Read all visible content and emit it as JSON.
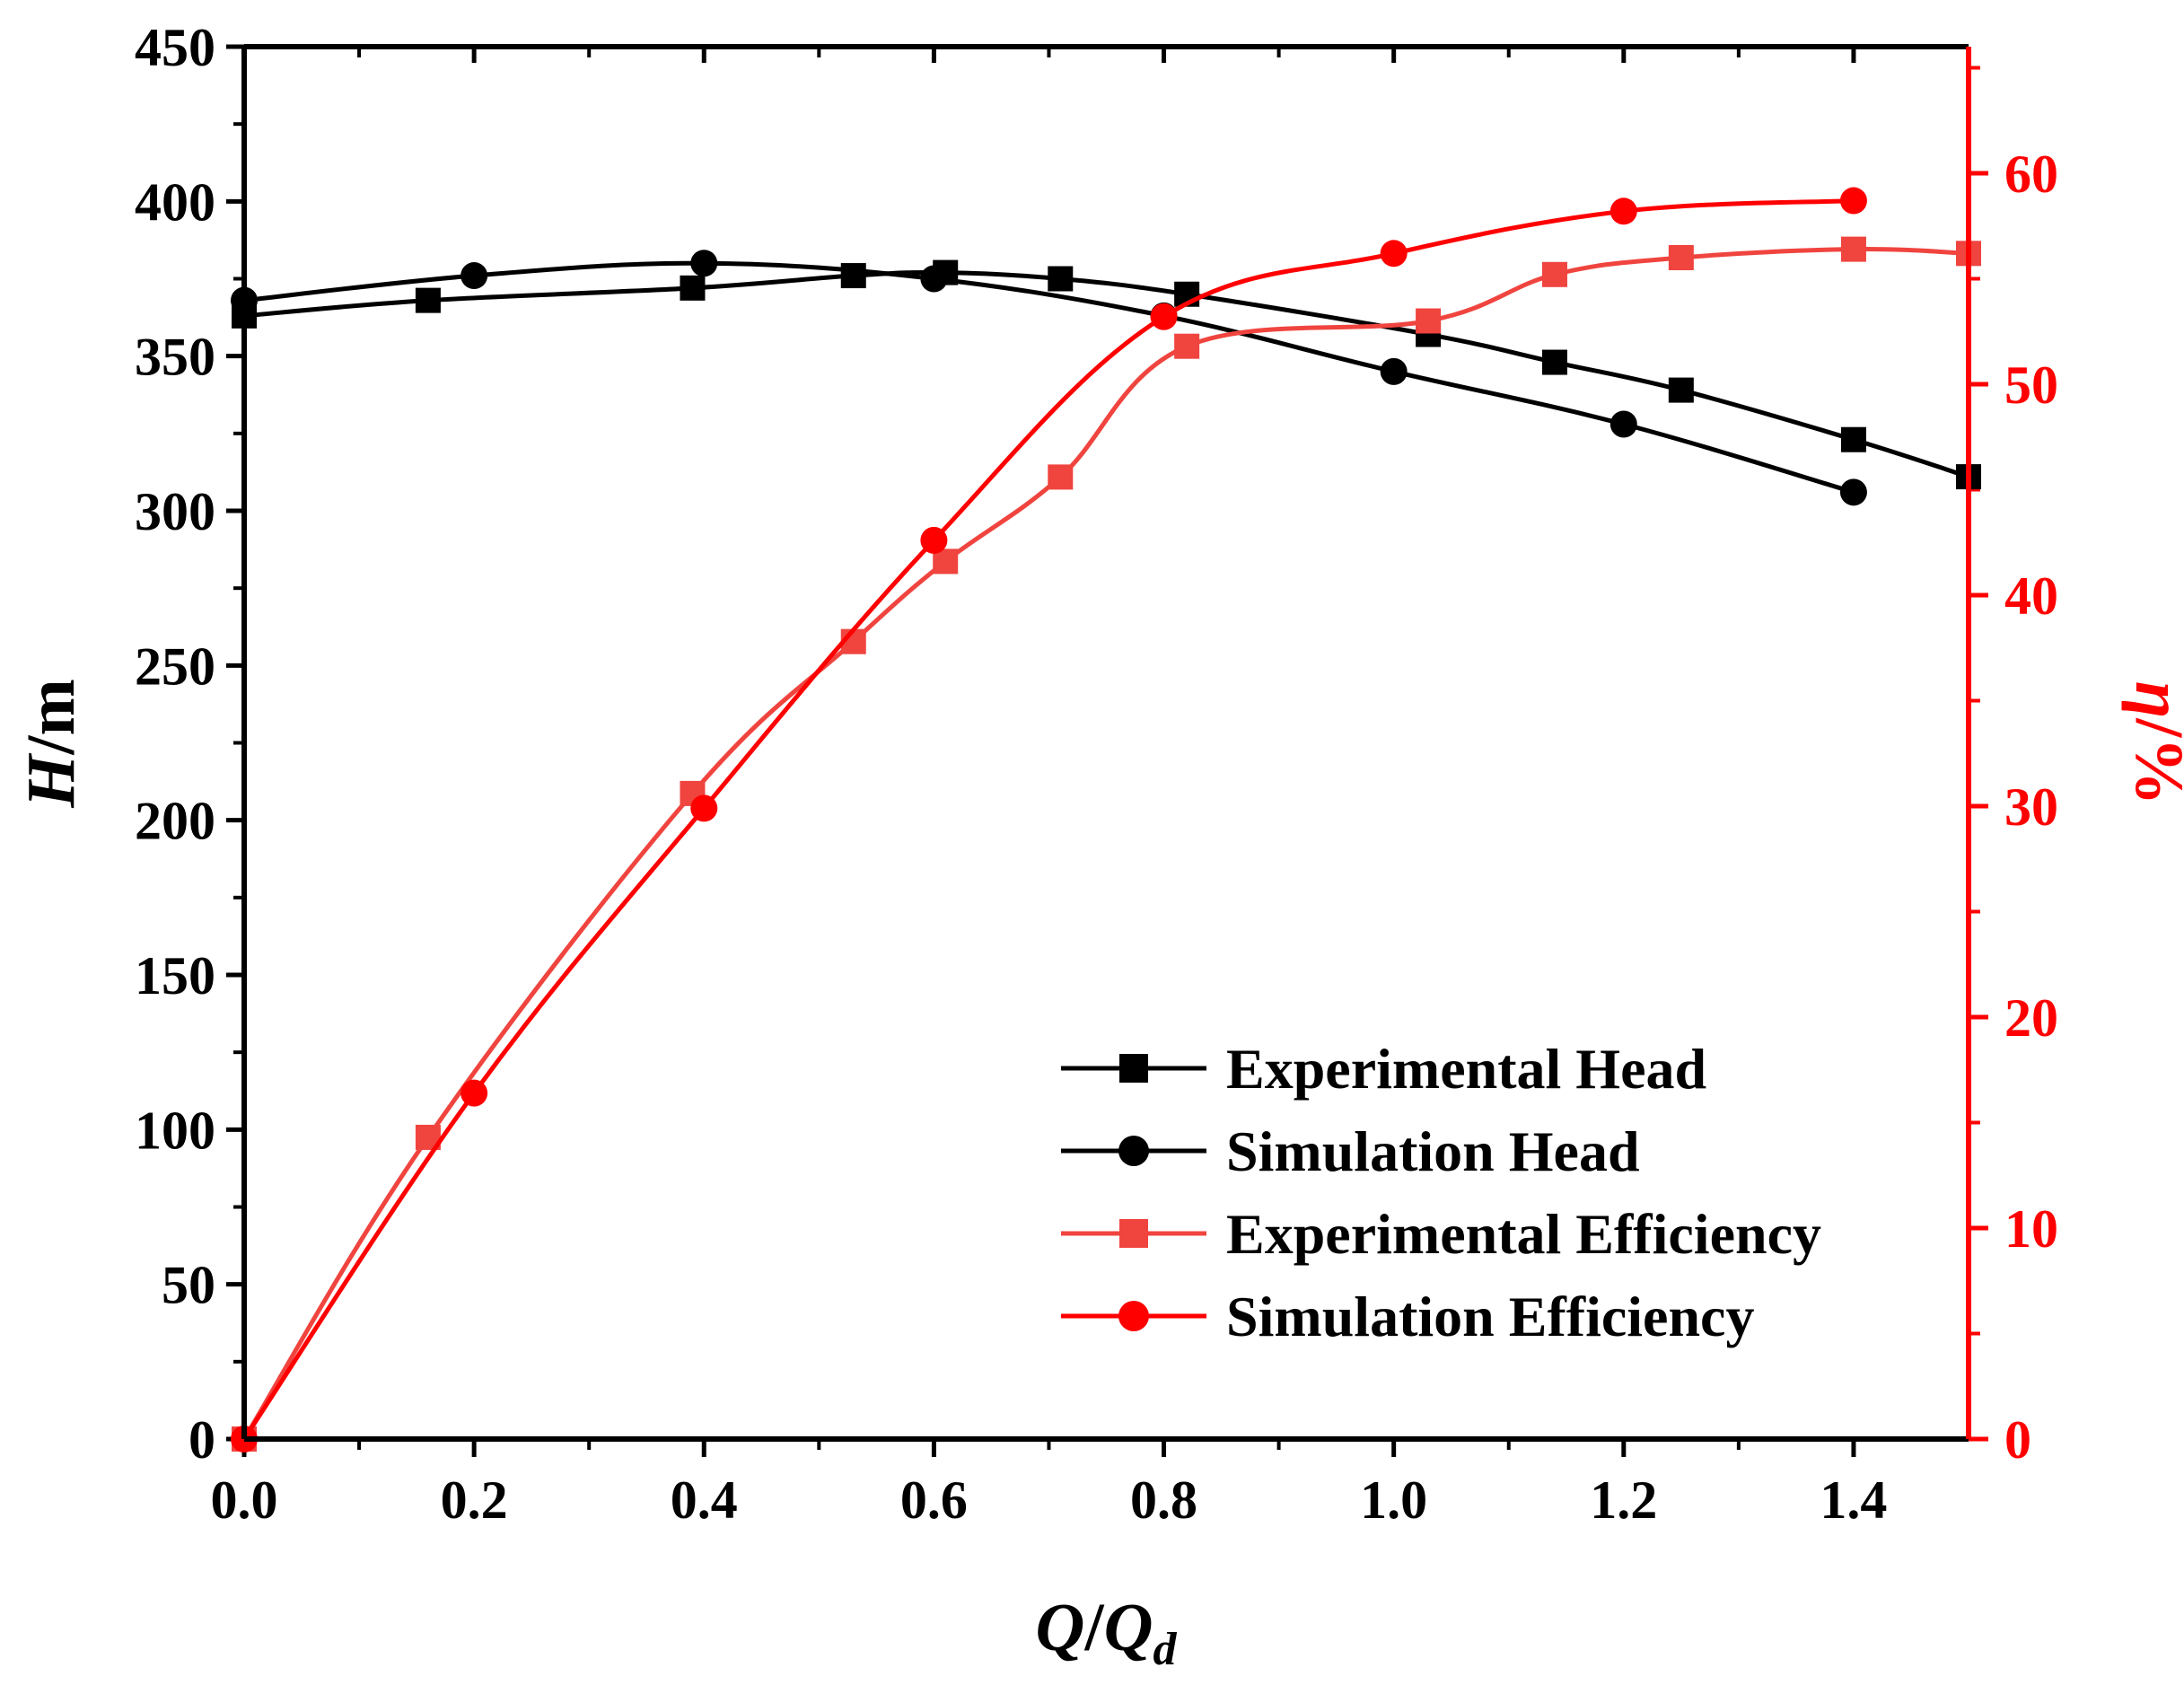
{
  "chart_data": {
    "type": "line",
    "x_label": {
      "main": "Q",
      "sep": "/",
      "sym": "Q",
      "sub": "d"
    },
    "y_left_label": {
      "sym": "H",
      "unit": "/m"
    },
    "y_right_label": {
      "sym": "η",
      "unit": "/%"
    },
    "xlim": [
      0,
      1.5
    ],
    "ylim_left": [
      0,
      450
    ],
    "ylim_right": [
      0,
      66
    ],
    "x_ticks": [
      "0.0",
      "0.2",
      "0.4",
      "0.6",
      "0.8",
      "1.0",
      "1.2",
      "1.4"
    ],
    "y_left_ticks": [
      "0",
      "50",
      "100",
      "150",
      "200",
      "250",
      "300",
      "350",
      "400",
      "450"
    ],
    "y_right_ticks": [
      "0",
      "10",
      "20",
      "30",
      "40",
      "50",
      "60"
    ],
    "colors": {
      "axis_left": "#000000",
      "axis_right": "#ff0000",
      "experimental_efficiency": "#f0443f",
      "simulation_efficiency": "#ff0000",
      "head": "#000000"
    },
    "legend_position": "bottom-right",
    "series": [
      {
        "name": "Experimental Head",
        "axis": "left",
        "marker": "square",
        "color": "#000000",
        "x": [
          0.0,
          0.16,
          0.39,
          0.53,
          0.61,
          0.71,
          0.82,
          1.03,
          1.14,
          1.25,
          1.4,
          1.5
        ],
        "y": [
          363,
          368,
          372,
          376,
          377,
          375,
          370,
          357,
          348,
          339,
          323,
          311
        ]
      },
      {
        "name": "Simulation Head",
        "axis": "left",
        "marker": "circle",
        "color": "#000000",
        "x": [
          0.0,
          0.2,
          0.4,
          0.6,
          0.8,
          1.0,
          1.2,
          1.4
        ],
        "y": [
          368,
          376,
          380,
          375,
          363,
          345,
          328,
          306
        ]
      },
      {
        "name": "Experimental Efficiency",
        "axis": "right",
        "marker": "square",
        "color": "#f0443f",
        "x": [
          0.0,
          0.16,
          0.39,
          0.53,
          0.61,
          0.71,
          0.82,
          1.03,
          1.14,
          1.25,
          1.4,
          1.5
        ],
        "y": [
          0,
          14.3,
          30.6,
          37.8,
          41.6,
          45.6,
          51.8,
          53.0,
          55.2,
          56.0,
          56.4,
          56.2
        ]
      },
      {
        "name": "Simulation Efficiency",
        "axis": "right",
        "marker": "circle",
        "color": "#ff0000",
        "x": [
          0.0,
          0.2,
          0.4,
          0.6,
          0.8,
          1.0,
          1.2,
          1.4
        ],
        "y": [
          0,
          16.4,
          29.9,
          42.6,
          53.2,
          56.2,
          58.2,
          58.7
        ]
      }
    ]
  }
}
